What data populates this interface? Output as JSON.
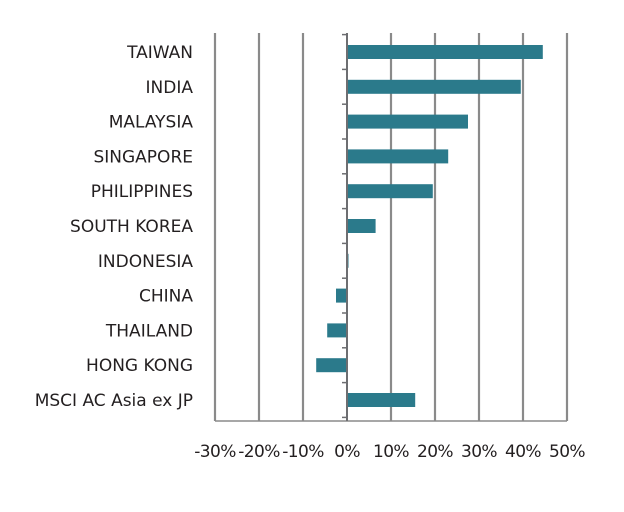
{
  "chart_data": {
    "type": "bar",
    "orientation": "horizontal",
    "categories": [
      "TAIWAN",
      "INDIA",
      "MALAYSIA",
      "SINGAPORE",
      "PHILIPPINES",
      "SOUTH KOREA",
      "INDONESIA",
      "CHINA",
      "THAILAND",
      "HONG KONG",
      "MSCI AC Asia ex JP"
    ],
    "values": [
      44.5,
      39.5,
      27.5,
      23.0,
      19.5,
      6.5,
      0.3,
      -2.5,
      -4.5,
      -7.0,
      15.5
    ],
    "xlim": [
      -30,
      50
    ],
    "x_ticks": [
      "-30%",
      "-20%",
      "-10%",
      "0%",
      "10%",
      "20%",
      "30%",
      "40%",
      "50%"
    ],
    "grid": true,
    "colors": {
      "bar": "#2b7a8b",
      "grid": "#8a8a8a",
      "axis": "#6d6e71",
      "text": "#231f20"
    }
  }
}
